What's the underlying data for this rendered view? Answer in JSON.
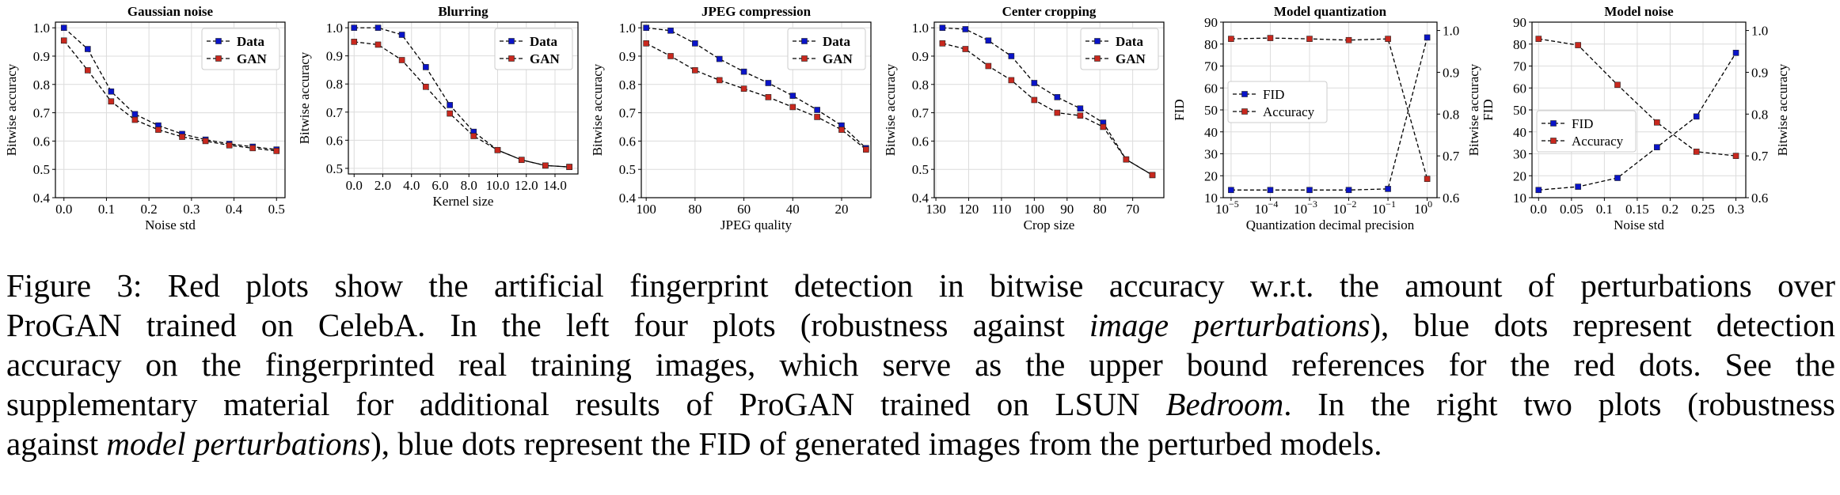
{
  "colors": {
    "data": "#0a14c8",
    "gan": "#c8281e",
    "grid": "#dcdcdc",
    "axis": "#000000"
  },
  "chart_data": [
    {
      "type": "line",
      "title": "Gaussian noise",
      "xlabel": "Noise std",
      "ylabel": "Bitwise accuracy",
      "xlim": [
        -0.02,
        0.52
      ],
      "ylim": [
        0.4,
        1.02
      ],
      "xticks": [
        0.0,
        0.1,
        0.2,
        0.3,
        0.4,
        0.5
      ],
      "xtick_labels": [
        "0.0",
        "0.1",
        "0.2",
        "0.3",
        "0.4",
        "0.5"
      ],
      "yticks": [
        0.4,
        0.5,
        0.6,
        0.7,
        0.8,
        0.9,
        1.0
      ],
      "ytick_labels": [
        "0.4",
        "0.5",
        "0.6",
        "0.7",
        "0.8",
        "0.9",
        "1.0"
      ],
      "legend": "upper right",
      "series": [
        {
          "name": "Data",
          "axis": "left",
          "x": [
            0.0,
            0.056,
            0.111,
            0.167,
            0.222,
            0.278,
            0.333,
            0.389,
            0.444,
            0.5
          ],
          "values": [
            1.0,
            0.925,
            0.775,
            0.695,
            0.655,
            0.625,
            0.605,
            0.59,
            0.58,
            0.57
          ]
        },
        {
          "name": "GAN",
          "axis": "left",
          "x": [
            0.0,
            0.056,
            0.111,
            0.167,
            0.222,
            0.278,
            0.333,
            0.389,
            0.444,
            0.5
          ],
          "values": [
            0.955,
            0.85,
            0.74,
            0.675,
            0.64,
            0.615,
            0.6,
            0.585,
            0.575,
            0.565
          ]
        }
      ]
    },
    {
      "type": "line",
      "title": "Blurring",
      "xlabel": "Kernel size",
      "ylabel": "Bitwise accuracy",
      "xlim": [
        -0.4,
        15.6
      ],
      "ylim": [
        0.48,
        1.02
      ],
      "xticks": [
        0,
        2,
        4,
        6,
        8,
        10,
        12,
        14
      ],
      "xtick_labels": [
        "0.0",
        "2.0",
        "4.0",
        "6.0",
        "8.0",
        "10.0",
        "12.0",
        "14.0"
      ],
      "yticks": [
        0.5,
        0.6,
        0.7,
        0.8,
        0.9,
        1.0
      ],
      "ytick_labels": [
        "0.5",
        "0.6",
        "0.7",
        "0.8",
        "0.9",
        "1.0"
      ],
      "legend": "upper right",
      "series": [
        {
          "name": "Data",
          "axis": "left",
          "x": [
            0,
            1.67,
            3.33,
            5,
            6.67,
            8.33,
            10,
            11.67,
            13.33,
            15
          ],
          "values": [
            1.0,
            1.0,
            0.975,
            0.86,
            0.725,
            0.63,
            0.565,
            0.53,
            0.51,
            0.505
          ]
        },
        {
          "name": "GAN",
          "axis": "left",
          "x": [
            0,
            1.67,
            3.33,
            5,
            6.67,
            8.33,
            10,
            11.67,
            13.33,
            15
          ],
          "values": [
            0.95,
            0.94,
            0.885,
            0.79,
            0.695,
            0.615,
            0.565,
            0.53,
            0.51,
            0.505
          ]
        }
      ]
    },
    {
      "type": "line",
      "title": "JPEG compression",
      "xlabel": "JPEG quality",
      "ylabel": "Bitwise accuracy",
      "xlim": [
        102,
        8
      ],
      "ylim": [
        0.4,
        1.02
      ],
      "xticks": [
        100,
        80,
        60,
        40,
        20
      ],
      "xtick_labels": [
        "100",
        "80",
        "60",
        "40",
        "20"
      ],
      "yticks": [
        0.4,
        0.5,
        0.6,
        0.7,
        0.8,
        0.9,
        1.0
      ],
      "ytick_labels": [
        "0.4",
        "0.5",
        "0.6",
        "0.7",
        "0.8",
        "0.9",
        "1.0"
      ],
      "legend": "upper right",
      "series": [
        {
          "name": "Data",
          "axis": "left",
          "x": [
            100,
            90,
            80,
            70,
            60,
            50,
            40,
            30,
            20,
            10
          ],
          "values": [
            1.0,
            0.99,
            0.945,
            0.89,
            0.845,
            0.805,
            0.76,
            0.71,
            0.655,
            0.575
          ]
        },
        {
          "name": "GAN",
          "axis": "left",
          "x": [
            100,
            90,
            80,
            70,
            60,
            50,
            40,
            30,
            20,
            10
          ],
          "values": [
            0.945,
            0.9,
            0.85,
            0.815,
            0.785,
            0.755,
            0.72,
            0.685,
            0.64,
            0.57
          ]
        }
      ]
    },
    {
      "type": "line",
      "title": "Center cropping",
      "xlabel": "Crop size",
      "ylabel": "Bitwise accuracy",
      "xlim": [
        130.5,
        60.5
      ],
      "ylim": [
        0.4,
        1.02
      ],
      "xticks": [
        130,
        120,
        110,
        100,
        90,
        80,
        70
      ],
      "xtick_labels": [
        "130",
        "120",
        "110",
        "100",
        "90",
        "80",
        "70"
      ],
      "yticks": [
        0.4,
        0.5,
        0.6,
        0.7,
        0.8,
        0.9,
        1.0
      ],
      "ytick_labels": [
        "0.4",
        "0.5",
        "0.6",
        "0.7",
        "0.8",
        "0.9",
        "1.0"
      ],
      "legend": "upper right",
      "series": [
        {
          "name": "Data",
          "axis": "left",
          "x": [
            128,
            121,
            114,
            107,
            100,
            93,
            86,
            79,
            72,
            64
          ],
          "values": [
            1.0,
            0.995,
            0.955,
            0.9,
            0.805,
            0.755,
            0.715,
            0.665,
            0.535,
            0.48
          ]
        },
        {
          "name": "GAN",
          "axis": "left",
          "x": [
            128,
            121,
            114,
            107,
            100,
            93,
            86,
            79,
            72,
            64
          ],
          "values": [
            0.945,
            0.925,
            0.865,
            0.815,
            0.745,
            0.7,
            0.69,
            0.65,
            0.535,
            0.48
          ]
        }
      ]
    },
    {
      "type": "line",
      "title": "Model quantization",
      "xlabel": "Quantization decimal precision",
      "ylabel": "FID",
      "y2label": "Bitwise accuracy",
      "xscale": "log",
      "xlim": [
        -5.2,
        0.25
      ],
      "ylim": [
        10,
        90
      ],
      "y2lim": [
        0.6,
        1.02
      ],
      "xticks": [
        -5,
        -4,
        -3,
        -2,
        -1,
        0
      ],
      "xtick_labels": [
        "10",
        "10",
        "10",
        "10",
        "10",
        "10"
      ],
      "xtick_exponents": [
        "−5",
        "−4",
        "−3",
        "−2",
        "−1",
        "0"
      ],
      "yticks": [
        10,
        20,
        30,
        40,
        50,
        60,
        70,
        80,
        90
      ],
      "ytick_labels": [
        "10",
        "20",
        "30",
        "40",
        "50",
        "60",
        "70",
        "80",
        "90"
      ],
      "y2ticks": [
        0.6,
        0.7,
        0.8,
        0.9,
        1.0
      ],
      "y2tick_labels": [
        "0.6",
        "0.7",
        "0.8",
        "0.9",
        "1.0"
      ],
      "legend": "center left",
      "series": [
        {
          "name": "FID",
          "axis": "left",
          "x": [
            -5,
            -4,
            -3,
            -2,
            -1,
            0
          ],
          "values": [
            13.5,
            13.5,
            13.5,
            13.5,
            14,
            83
          ]
        },
        {
          "name": "Accuracy",
          "axis": "right",
          "x": [
            -5,
            -4,
            -3,
            -2,
            -1,
            0
          ],
          "values": [
            0.98,
            0.982,
            0.98,
            0.977,
            0.98,
            0.645
          ]
        }
      ]
    },
    {
      "type": "line",
      "title": "Model noise",
      "xlabel": "Noise std",
      "ylabel": "FID",
      "y2label": "Bitwise accuracy",
      "xlim": [
        -0.01,
        0.315
      ],
      "ylim": [
        10,
        90
      ],
      "y2lim": [
        0.6,
        1.02
      ],
      "xticks": [
        0.0,
        0.05,
        0.1,
        0.15,
        0.2,
        0.25,
        0.3
      ],
      "xtick_labels": [
        "0.0",
        "0.05",
        "0.1",
        "0.15",
        "0.2",
        "0.25",
        "0.3"
      ],
      "yticks": [
        10,
        20,
        30,
        40,
        50,
        60,
        70,
        80,
        90
      ],
      "ytick_labels": [
        "10",
        "20",
        "30",
        "40",
        "50",
        "60",
        "70",
        "80",
        "90"
      ],
      "y2ticks": [
        0.6,
        0.7,
        0.8,
        0.9,
        1.0
      ],
      "y2tick_labels": [
        "0.6",
        "0.7",
        "0.8",
        "0.9",
        "1.0"
      ],
      "legend": "center left",
      "series": [
        {
          "name": "FID",
          "axis": "left",
          "x": [
            0.0,
            0.06,
            0.12,
            0.18,
            0.24,
            0.3
          ],
          "values": [
            13.5,
            15,
            19,
            33,
            47,
            76
          ]
        },
        {
          "name": "Accuracy",
          "axis": "right",
          "x": [
            0.0,
            0.06,
            0.12,
            0.18,
            0.24,
            0.3
          ],
          "values": [
            0.98,
            0.965,
            0.87,
            0.78,
            0.71,
            0.7
          ]
        }
      ]
    }
  ],
  "caption": {
    "lines": [
      [
        {
          "t": "Figure 3:  Red plots show the artificial fingerprint detection in bitwise accuracy w.r.t.  the amount of perturbations over",
          "i": false
        }
      ],
      [
        {
          "t": "ProGAN trained on CelebA. In the left four plots (robustness against ",
          "i": false
        },
        {
          "t": "image perturbations",
          "i": true
        },
        {
          "t": "), blue dots represent detection",
          "i": false
        }
      ],
      [
        {
          "t": "accuracy on the fingerprinted real training images, which serve as the upper bound references for the red dots.  See the",
          "i": false
        }
      ],
      [
        {
          "t": "supplementary material for additional results of ProGAN trained on LSUN ",
          "i": false
        },
        {
          "t": "Bedroom",
          "i": true
        },
        {
          "t": ".  In the right two plots (robustness",
          "i": false
        }
      ],
      [
        {
          "t": "against ",
          "i": false
        },
        {
          "t": "model perturbations",
          "i": true
        },
        {
          "t": "), blue dots represent the FID of generated images from the perturbed models.",
          "i": false
        }
      ]
    ]
  }
}
